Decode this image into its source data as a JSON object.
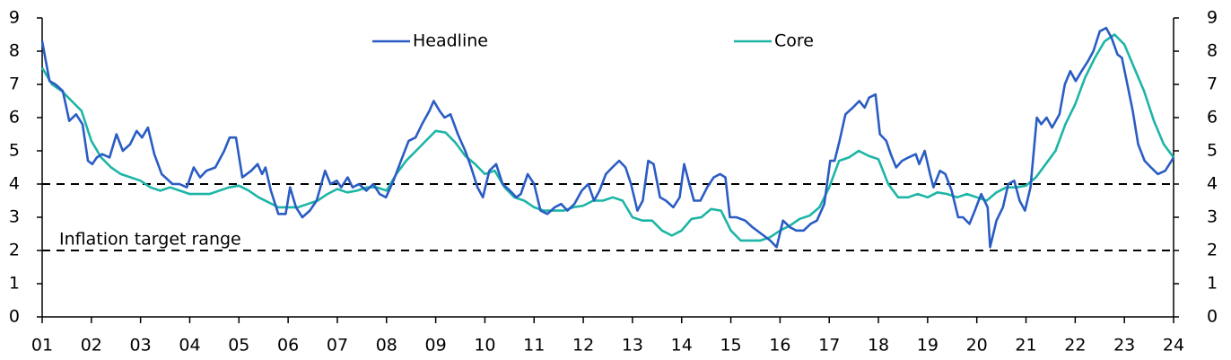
{
  "chart_data": {
    "type": "line",
    "xlim": [
      1,
      24
    ],
    "ylim": [
      0,
      9
    ],
    "xticks": [
      {
        "value": 1,
        "label": "01"
      },
      {
        "value": 2,
        "label": "02"
      },
      {
        "value": 3,
        "label": "03"
      },
      {
        "value": 4,
        "label": "04"
      },
      {
        "value": 5,
        "label": "05"
      },
      {
        "value": 6,
        "label": "06"
      },
      {
        "value": 7,
        "label": "07"
      },
      {
        "value": 8,
        "label": "08"
      },
      {
        "value": 9,
        "label": "09"
      },
      {
        "value": 10,
        "label": "10"
      },
      {
        "value": 11,
        "label": "11"
      },
      {
        "value": 12,
        "label": "12"
      },
      {
        "value": 13,
        "label": "13"
      },
      {
        "value": 14,
        "label": "14"
      },
      {
        "value": 15,
        "label": "15"
      },
      {
        "value": 16,
        "label": "16"
      },
      {
        "value": 17,
        "label": "17"
      },
      {
        "value": 18,
        "label": "18"
      },
      {
        "value": 19,
        "label": "19"
      },
      {
        "value": 20,
        "label": "20"
      },
      {
        "value": 21,
        "label": "21"
      },
      {
        "value": 22,
        "label": "22"
      },
      {
        "value": 23,
        "label": "23"
      },
      {
        "value": 24,
        "label": "24"
      }
    ],
    "yticks": [
      0,
      1,
      2,
      3,
      4,
      5,
      6,
      7,
      8,
      9
    ],
    "y2lim": [
      0,
      9
    ],
    "y2ticks": [
      0,
      1,
      2,
      3,
      4,
      5,
      6,
      7,
      8,
      9
    ],
    "legend": "top",
    "reference_lines": [
      4,
      2
    ],
    "annotation": "Inflation target range",
    "series": [
      {
        "name": "Headline",
        "color": "#2a5cc4",
        "x": [
          1.0,
          1.15,
          1.27,
          1.42,
          1.55,
          1.69,
          1.82,
          1.93,
          2.02,
          2.11,
          2.22,
          2.37,
          2.51,
          2.64,
          2.79,
          2.92,
          3.03,
          3.15,
          3.28,
          3.43,
          3.65,
          3.79,
          3.94,
          4.08,
          4.21,
          4.34,
          4.52,
          4.7,
          4.81,
          4.94,
          5.07,
          5.25,
          5.38,
          5.47,
          5.54,
          5.65,
          5.8,
          5.95,
          6.04,
          6.16,
          6.29,
          6.44,
          6.58,
          6.75,
          6.86,
          6.99,
          7.08,
          7.21,
          7.31,
          7.44,
          7.59,
          7.73,
          7.86,
          7.99,
          8.14,
          8.32,
          8.45,
          8.59,
          8.72,
          8.87,
          8.96,
          9.08,
          9.18,
          9.3,
          9.45,
          9.6,
          9.72,
          9.85,
          9.96,
          10.09,
          10.23,
          10.36,
          10.51,
          10.64,
          10.73,
          10.87,
          11.0,
          11.13,
          11.27,
          11.42,
          11.55,
          11.68,
          11.82,
          11.97,
          12.1,
          12.22,
          12.33,
          12.46,
          12.59,
          12.73,
          12.86,
          12.97,
          13.1,
          13.21,
          13.32,
          13.43,
          13.56,
          13.68,
          13.83,
          13.96,
          14.05,
          14.14,
          14.25,
          14.38,
          14.52,
          14.65,
          14.78,
          14.89,
          14.98,
          15.11,
          15.29,
          15.44,
          15.62,
          15.8,
          15.93,
          16.06,
          16.2,
          16.33,
          16.48,
          16.62,
          16.75,
          16.9,
          17.02,
          17.11,
          17.21,
          17.33,
          17.48,
          17.61,
          17.72,
          17.81,
          17.94,
          18.03,
          18.16,
          18.25,
          18.36,
          18.48,
          18.61,
          18.76,
          18.83,
          18.94,
          19.05,
          19.12,
          19.25,
          19.36,
          19.49,
          19.62,
          19.72,
          19.85,
          19.96,
          20.09,
          20.22,
          20.27,
          20.4,
          20.53,
          20.64,
          20.76,
          20.87,
          20.98,
          21.09,
          21.22,
          21.31,
          21.42,
          21.53,
          21.68,
          21.79,
          21.9,
          22.01,
          22.13,
          22.26,
          22.37,
          22.5,
          22.63,
          22.74,
          22.86,
          22.95,
          23.06,
          23.17,
          23.28,
          23.41,
          23.54,
          23.68,
          23.83,
          23.96,
          24.0
        ],
        "values": [
          8.3,
          7.1,
          7.0,
          6.8,
          5.9,
          6.1,
          5.8,
          4.7,
          4.6,
          4.8,
          4.9,
          4.8,
          5.5,
          5.0,
          5.2,
          5.6,
          5.4,
          5.7,
          4.9,
          4.3,
          4.0,
          4.0,
          3.9,
          4.5,
          4.2,
          4.4,
          4.5,
          5.0,
          5.4,
          5.4,
          4.2,
          4.4,
          4.6,
          4.3,
          4.5,
          3.8,
          3.1,
          3.1,
          3.9,
          3.3,
          3.0,
          3.2,
          3.5,
          4.4,
          4.0,
          4.1,
          3.9,
          4.2,
          3.9,
          4.0,
          3.8,
          4.0,
          3.7,
          3.6,
          4.1,
          4.8,
          5.3,
          5.4,
          5.8,
          6.2,
          6.5,
          6.2,
          6.0,
          6.1,
          5.5,
          5.0,
          4.5,
          3.9,
          3.6,
          4.4,
          4.6,
          4.0,
          3.8,
          3.6,
          3.7,
          4.3,
          4.0,
          3.2,
          3.1,
          3.3,
          3.4,
          3.2,
          3.4,
          3.8,
          4.0,
          3.5,
          3.8,
          4.3,
          4.5,
          4.7,
          4.5,
          4.0,
          3.2,
          3.5,
          4.7,
          4.6,
          3.6,
          3.5,
          3.3,
          3.6,
          4.6,
          4.1,
          3.5,
          3.5,
          3.9,
          4.2,
          4.3,
          4.2,
          3.0,
          3.0,
          2.9,
          2.7,
          2.5,
          2.3,
          2.1,
          2.9,
          2.7,
          2.6,
          2.6,
          2.8,
          2.9,
          3.4,
          4.7,
          4.7,
          5.3,
          6.1,
          6.3,
          6.5,
          6.3,
          6.6,
          6.7,
          5.5,
          5.3,
          4.9,
          4.5,
          4.7,
          4.8,
          4.9,
          4.6,
          5.0,
          4.3,
          3.9,
          4.4,
          4.3,
          3.8,
          3.0,
          3.0,
          2.8,
          3.2,
          3.7,
          3.3,
          2.1,
          2.9,
          3.3,
          4.0,
          4.1,
          3.5,
          3.2,
          3.9,
          6.0,
          5.8,
          6.0,
          5.7,
          6.1,
          7.0,
          7.4,
          7.1,
          7.4,
          7.7,
          8.0,
          8.6,
          8.7,
          8.4,
          7.9,
          7.8,
          7.0,
          6.2,
          5.2,
          4.7,
          4.5,
          4.3,
          4.4,
          4.7,
          4.8
        ]
      },
      {
        "name": "Core",
        "color": "#1db5a6",
        "x": [
          1.0,
          1.2,
          1.4,
          1.6,
          1.8,
          2.0,
          2.2,
          2.4,
          2.6,
          2.8,
          3.0,
          3.2,
          3.4,
          3.6,
          3.8,
          4.0,
          4.2,
          4.4,
          4.6,
          4.8,
          5.0,
          5.2,
          5.4,
          5.6,
          5.8,
          6.0,
          6.2,
          6.4,
          6.6,
          6.8,
          7.0,
          7.2,
          7.4,
          7.6,
          7.8,
          8.0,
          8.2,
          8.4,
          8.6,
          8.8,
          9.0,
          9.2,
          9.4,
          9.6,
          9.8,
          10.0,
          10.2,
          10.4,
          10.6,
          10.8,
          11.0,
          11.2,
          11.4,
          11.6,
          11.8,
          12.0,
          12.2,
          12.4,
          12.6,
          12.8,
          13.0,
          13.2,
          13.4,
          13.6,
          13.8,
          14.0,
          14.2,
          14.4,
          14.6,
          14.8,
          15.0,
          15.2,
          15.4,
          15.6,
          15.8,
          16.0,
          16.2,
          16.4,
          16.6,
          16.8,
          17.0,
          17.2,
          17.4,
          17.6,
          17.8,
          18.0,
          18.2,
          18.4,
          18.6,
          18.8,
          19.0,
          19.2,
          19.4,
          19.6,
          19.8,
          20.0,
          20.2,
          20.4,
          20.6,
          20.8,
          21.0,
          21.2,
          21.4,
          21.6,
          21.8,
          22.0,
          22.2,
          22.4,
          22.6,
          22.8,
          23.0,
          23.2,
          23.4,
          23.6,
          23.8,
          24.0
        ],
        "values": [
          7.5,
          7.0,
          6.8,
          6.5,
          6.2,
          5.3,
          4.8,
          4.5,
          4.3,
          4.2,
          4.1,
          3.9,
          3.8,
          3.9,
          3.8,
          3.7,
          3.7,
          3.7,
          3.8,
          3.9,
          3.95,
          3.8,
          3.6,
          3.45,
          3.3,
          3.3,
          3.3,
          3.4,
          3.5,
          3.7,
          3.85,
          3.75,
          3.8,
          3.9,
          3.9,
          3.8,
          4.3,
          4.7,
          5.0,
          5.3,
          5.6,
          5.55,
          5.25,
          4.85,
          4.6,
          4.3,
          4.4,
          3.9,
          3.6,
          3.5,
          3.3,
          3.2,
          3.2,
          3.2,
          3.3,
          3.35,
          3.5,
          3.5,
          3.6,
          3.5,
          3.0,
          2.9,
          2.9,
          2.6,
          2.45,
          2.6,
          2.95,
          3.0,
          3.25,
          3.2,
          2.6,
          2.3,
          2.3,
          2.3,
          2.4,
          2.6,
          2.75,
          2.95,
          3.05,
          3.3,
          3.9,
          4.7,
          4.8,
          5.0,
          4.85,
          4.75,
          4.0,
          3.6,
          3.6,
          3.7,
          3.6,
          3.75,
          3.7,
          3.6,
          3.7,
          3.6,
          3.5,
          3.75,
          3.9,
          3.9,
          3.95,
          4.2,
          4.6,
          5.0,
          5.8,
          6.4,
          7.2,
          7.8,
          8.3,
          8.5,
          8.2,
          7.5,
          6.8,
          5.9,
          5.2,
          4.8
        ]
      }
    ]
  }
}
